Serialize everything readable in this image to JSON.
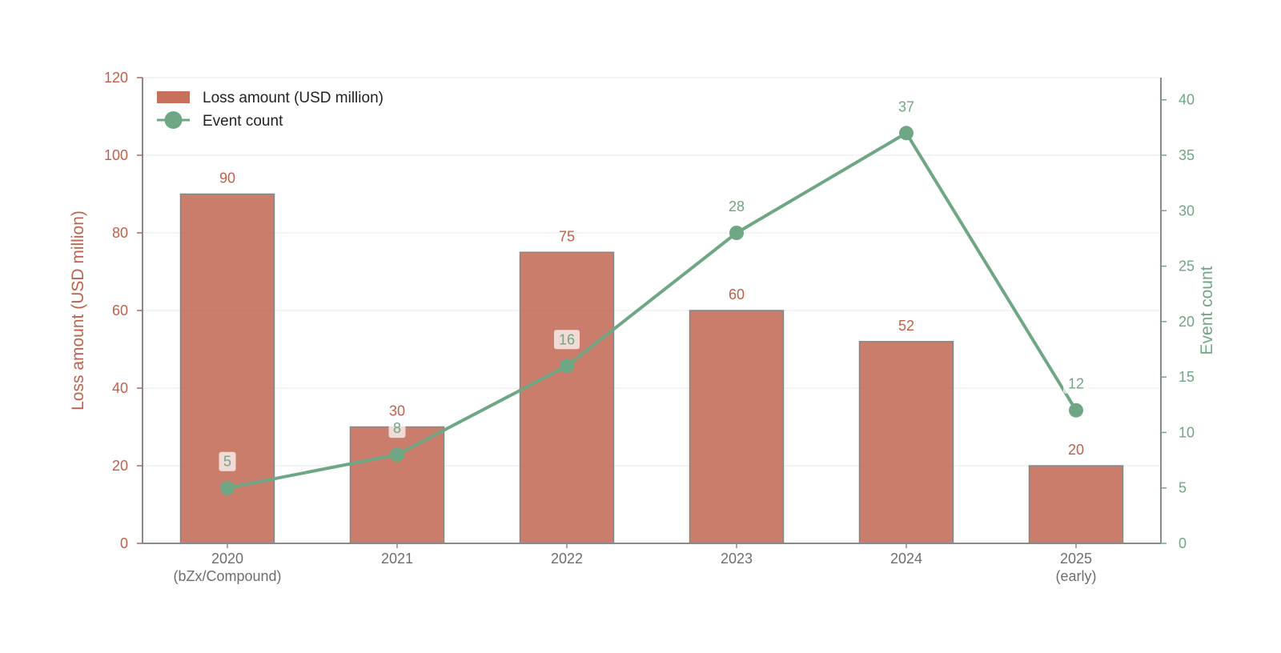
{
  "chart_data": {
    "type": "bar",
    "title": "",
    "categories": [
      "2020\n(bZx/Compound)",
      "2021",
      "2022",
      "2023",
      "2024",
      "2025\n(early)"
    ],
    "series": [
      {
        "name": "Loss amount (USD million)",
        "type": "bar",
        "axis": "left",
        "values": [
          90,
          30,
          75,
          60,
          52,
          20
        ],
        "color": "#C0604A"
      },
      {
        "name": "Event count",
        "type": "line",
        "axis": "right",
        "values": [
          5,
          8,
          16,
          28,
          37,
          12
        ],
        "color": "#6FA784"
      }
    ],
    "y_left": {
      "label": "Loss amount (USD million)",
      "ylim": [
        0,
        120
      ],
      "ticks": [
        0,
        20,
        40,
        60,
        80,
        100,
        120
      ]
    },
    "y_right": {
      "label": "Event count",
      "ylim": [
        0,
        42
      ],
      "ticks": [
        0,
        5,
        10,
        15,
        20,
        25,
        30,
        35,
        40
      ]
    },
    "xlabel": "",
    "grid": true,
    "legend_position": "top-left"
  },
  "colors": {
    "bar": "#C0604A",
    "line": "#6FA784",
    "grid": "#E9E9E9",
    "axis": "#8A8A8A"
  }
}
